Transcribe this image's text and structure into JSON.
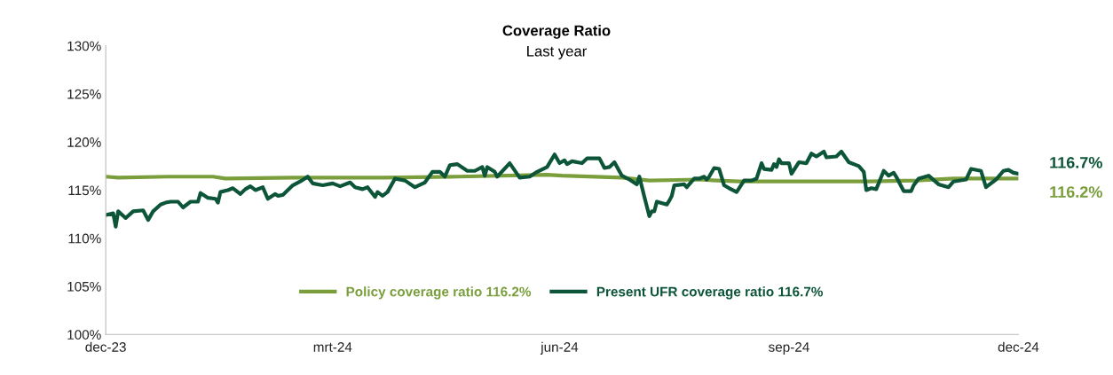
{
  "chart_data": {
    "type": "line",
    "title": "Coverage Ratio",
    "subtitle": "Last year",
    "ylim": [
      100,
      130
    ],
    "yticks": [
      {
        "value": 100,
        "label": "100%"
      },
      {
        "value": 105,
        "label": "105%"
      },
      {
        "value": 110,
        "label": "110%"
      },
      {
        "value": 115,
        "label": "115%"
      },
      {
        "value": 120,
        "label": "120%"
      },
      {
        "value": 125,
        "label": "125%"
      },
      {
        "value": 130,
        "label": "130%"
      }
    ],
    "xlim": [
      "2023-12-31",
      "2024-12-31"
    ],
    "xticks": [
      {
        "value": "2023-12-31",
        "label": "dec-23"
      },
      {
        "value": "2024-03-31",
        "label": "mrt-24"
      },
      {
        "value": "2024-06-30",
        "label": "jun-24"
      },
      {
        "value": "2024-09-30",
        "label": "sep-24"
      },
      {
        "value": "2024-12-31",
        "label": "dec-24"
      }
    ],
    "grid": false,
    "legend": "bottom",
    "marker": "none",
    "line_style": "solid",
    "series": [
      {
        "name": "Policy coverage ratio 116.2%",
        "color": "#7a9e3c",
        "x": [
          "2023-12-31",
          "2024-01-05",
          "2024-01-25",
          "2024-02-12",
          "2024-02-17",
          "2024-03-15",
          "2024-04-20",
          "2024-05-20",
          "2024-06-25",
          "2024-07-01",
          "2024-07-25",
          "2024-08-05",
          "2024-08-25",
          "2024-09-01",
          "2024-09-10",
          "2024-10-15",
          "2024-11-01",
          "2024-11-20",
          "2024-12-05",
          "2024-12-31"
        ],
        "values": [
          116.4,
          116.3,
          116.4,
          116.4,
          116.2,
          116.3,
          116.3,
          116.4,
          116.6,
          116.5,
          116.3,
          116.0,
          116.1,
          116.0,
          115.9,
          115.9,
          115.9,
          116.0,
          116.2,
          116.2
        ]
      },
      {
        "name": "Present UFR coverage ratio 116.7%",
        "color": "#0d5538",
        "x": [
          "2023-12-31",
          "2024-01-03",
          "2024-01-04",
          "2024-01-05",
          "2024-01-08",
          "2024-01-11",
          "2024-01-15",
          "2024-01-17",
          "2024-01-19",
          "2024-01-22",
          "2024-01-24",
          "2024-01-26",
          "2024-01-29",
          "2024-01-31",
          "2024-02-03",
          "2024-02-06",
          "2024-02-07",
          "2024-02-10",
          "2024-02-13",
          "2024-02-14",
          "2024-02-15",
          "2024-02-18",
          "2024-02-20",
          "2024-02-23",
          "2024-02-25",
          "2024-02-27",
          "2024-02-29",
          "2024-03-03",
          "2024-03-05",
          "2024-03-08",
          "2024-03-09",
          "2024-03-11",
          "2024-03-15",
          "2024-03-18",
          "2024-03-21",
          "2024-03-23",
          "2024-03-27",
          "2024-03-31",
          "2024-04-03",
          "2024-04-07",
          "2024-04-09",
          "2024-04-12",
          "2024-04-14",
          "2024-04-17",
          "2024-04-18",
          "2024-04-20",
          "2024-04-22",
          "2024-04-25",
          "2024-04-29",
          "2024-05-03",
          "2024-05-07",
          "2024-05-10",
          "2024-05-13",
          "2024-05-15",
          "2024-05-17",
          "2024-05-20",
          "2024-05-24",
          "2024-05-27",
          "2024-05-30",
          "2024-05-31",
          "2024-06-01",
          "2024-06-04",
          "2024-06-05",
          "2024-06-10",
          "2024-06-14",
          "2024-06-18",
          "2024-06-21",
          "2024-06-25",
          "2024-06-28",
          "2024-06-30",
          "2024-07-02",
          "2024-07-03",
          "2024-07-05",
          "2024-07-09",
          "2024-07-11",
          "2024-07-16",
          "2024-07-18",
          "2024-07-20",
          "2024-07-22",
          "2024-07-25",
          "2024-07-28",
          "2024-07-31",
          "2024-08-01",
          "2024-08-03",
          "2024-08-05",
          "2024-08-06",
          "2024-08-07",
          "2024-08-08",
          "2024-08-12",
          "2024-08-13",
          "2024-08-14",
          "2024-08-15",
          "2024-08-19",
          "2024-08-20",
          "2024-08-23",
          "2024-08-25",
          "2024-08-27",
          "2024-08-28",
          "2024-08-29",
          "2024-08-31",
          "2024-09-02",
          "2024-09-04",
          "2024-09-06",
          "2024-09-09",
          "2024-09-12",
          "2024-09-15",
          "2024-09-17",
          "2024-09-19",
          "2024-09-20",
          "2024-09-23",
          "2024-09-24",
          "2024-09-25",
          "2024-09-26",
          "2024-09-27",
          "2024-09-30",
          "2024-10-01",
          "2024-10-04",
          "2024-10-07",
          "2024-10-09",
          "2024-10-11",
          "2024-10-14",
          "2024-10-15",
          "2024-10-19",
          "2024-10-21",
          "2024-10-24",
          "2024-10-28",
          "2024-10-30",
          "2024-10-31",
          "2024-11-02",
          "2024-11-04",
          "2024-11-07",
          "2024-11-09",
          "2024-11-11",
          "2024-11-12",
          "2024-11-15",
          "2024-11-18",
          "2024-11-19",
          "2024-11-21",
          "2024-11-25",
          "2024-11-29",
          "2024-12-03",
          "2024-12-05",
          "2024-12-10",
          "2024-12-12",
          "2024-12-16",
          "2024-12-18",
          "2024-12-22",
          "2024-12-25",
          "2024-12-27",
          "2024-12-29",
          "2024-12-31"
        ],
        "values": [
          112.4,
          112.6,
          111.2,
          112.8,
          112.1,
          112.8,
          112.9,
          111.9,
          112.8,
          113.5,
          113.7,
          113.8,
          113.8,
          113.2,
          113.8,
          113.8,
          114.7,
          114.2,
          114.1,
          113.7,
          114.8,
          115.0,
          115.2,
          114.6,
          115.1,
          115.4,
          115.0,
          115.3,
          114.1,
          114.6,
          114.4,
          114.5,
          115.5,
          115.9,
          116.4,
          115.7,
          115.5,
          115.7,
          115.4,
          115.8,
          115.3,
          115.1,
          115.3,
          114.3,
          114.8,
          114.4,
          114.8,
          116.2,
          116.0,
          115.3,
          115.8,
          116.9,
          116.9,
          116.4,
          117.6,
          117.7,
          117.0,
          117.0,
          117.4,
          116.5,
          117.4,
          116.9,
          116.4,
          117.8,
          116.3,
          116.4,
          116.9,
          117.4,
          118.7,
          117.8,
          118.1,
          117.7,
          118.0,
          117.8,
          118.3,
          118.3,
          117.3,
          117.4,
          117.9,
          116.5,
          116.1,
          115.6,
          116.4,
          114.3,
          112.3,
          112.8,
          112.8,
          113.8,
          113.5,
          113.9,
          114.4,
          115.5,
          115.6,
          115.3,
          116.2,
          116.2,
          116.4,
          116.1,
          116.4,
          117.3,
          117.2,
          115.5,
          115.2,
          114.8,
          116.0,
          116.0,
          116.2,
          117.8,
          117.2,
          117.1,
          117.7,
          117.4,
          118.2,
          117.8,
          117.8,
          116.7,
          117.9,
          117.8,
          118.8,
          118.5,
          119.0,
          118.4,
          118.5,
          119.0,
          117.9,
          117.5,
          116.9,
          115.0,
          115.2,
          115.1,
          117.0,
          116.5,
          116.8,
          116.4,
          114.9,
          114.9,
          115.5,
          116.2,
          116.5,
          115.6,
          115.3,
          115.9,
          116.1,
          117.2,
          117.0,
          115.3,
          116.1,
          117.0,
          117.1,
          116.8,
          116.7
        ]
      }
    ],
    "annotations": [
      {
        "text": "116.7%",
        "x": "2024-12-31",
        "y": 116.7
      },
      {
        "text": "116.2%",
        "x": "2024-12-31",
        "y": 116.2
      }
    ]
  }
}
